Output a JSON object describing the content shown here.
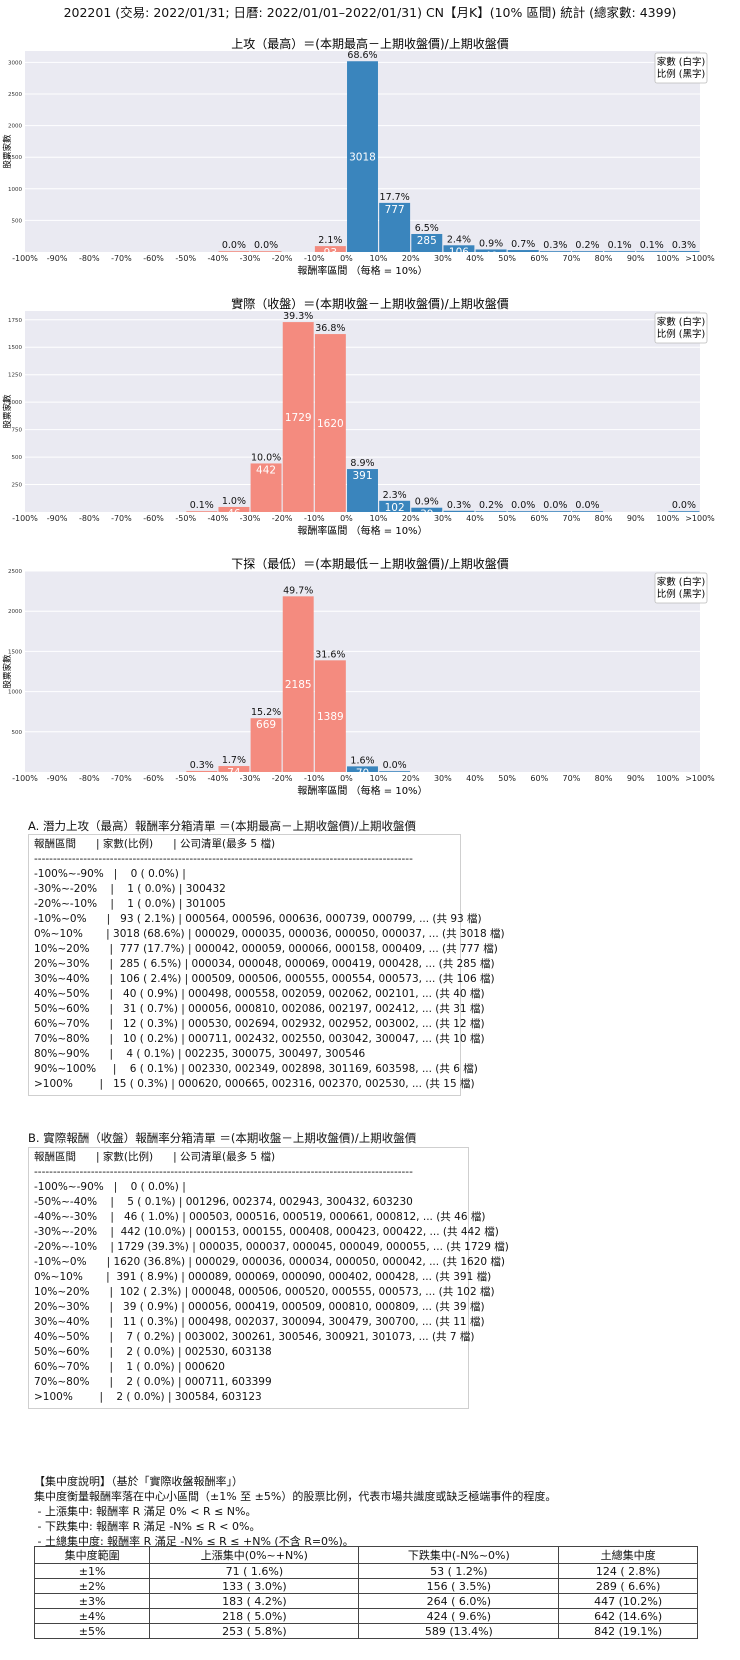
{
  "page_title": "202201 (交易: 2022/01/31; 日曆: 2022/01/01–2022/01/31) CN【月K】(10% 區間) 統計 (總家數: 4399)",
  "colors": {
    "up": "#3a85bd",
    "down": "#f48b7f",
    "plot_bg": "#eaeaf2",
    "grid": "#ffffff"
  },
  "chart_data": [
    {
      "type": "bar",
      "title": "上攻（最高）＝(本期最高－上期收盤價)/上期收盤價",
      "xlabel": "報酬率區間 （每格 = 10%）",
      "ylabel": "股票家數",
      "legend": [
        "家數 (白字)",
        "比例 (黑字)"
      ],
      "legend_position": "top-right",
      "x_ticks": [
        "-100%",
        "-90%",
        "-80%",
        "-70%",
        "-60%",
        "-50%",
        "-40%",
        "-30%",
        "-20%",
        "-10%",
        "0%",
        "10%",
        "20%",
        "30%",
        "40%",
        "50%",
        "60%",
        "70%",
        "80%",
        "90%",
        "100%",
        ">100%"
      ],
      "y_ticks": [
        500,
        1000,
        1500,
        2000,
        2500,
        3000
      ],
      "ylim": [
        0,
        3180
      ],
      "bars": [
        {
          "bin": 6,
          "value": 1,
          "pct": "0.0%",
          "label": ""
        },
        {
          "bin": 7,
          "value": 1,
          "pct": "0.0%",
          "label": ""
        },
        {
          "bin": 9,
          "value": 93,
          "pct": "2.1%",
          "label": "93"
        },
        {
          "bin": 10,
          "value": 3018,
          "pct": "68.6%",
          "label": "3018"
        },
        {
          "bin": 11,
          "value": 777,
          "pct": "17.7%",
          "label": "777"
        },
        {
          "bin": 12,
          "value": 285,
          "pct": "6.5%",
          "label": "285"
        },
        {
          "bin": 13,
          "value": 106,
          "pct": "2.4%",
          "label": "106"
        },
        {
          "bin": 14,
          "value": 40,
          "pct": "0.9%",
          "label": "40"
        },
        {
          "bin": 15,
          "value": 31,
          "pct": "0.7%",
          "label": ""
        },
        {
          "bin": 16,
          "value": 12,
          "pct": "0.3%",
          "label": ""
        },
        {
          "bin": 17,
          "value": 10,
          "pct": "0.2%",
          "label": ""
        },
        {
          "bin": 18,
          "value": 4,
          "pct": "0.1%",
          "label": ""
        },
        {
          "bin": 19,
          "value": 6,
          "pct": "0.1%",
          "label": ""
        },
        {
          "bin": 20,
          "value": 15,
          "pct": "0.3%",
          "label": ""
        }
      ]
    },
    {
      "type": "bar",
      "title": "實際（收盤）＝(本期收盤－上期收盤價)/上期收盤價",
      "xlabel": "報酬率區間 （每格 = 10%）",
      "ylabel": "股票家數",
      "legend": [
        "家數 (白字)",
        "比例 (黑字)"
      ],
      "legend_position": "top-right",
      "x_ticks": [
        "-100%",
        "-90%",
        "-80%",
        "-70%",
        "-60%",
        "-50%",
        "-40%",
        "-30%",
        "-20%",
        "-10%",
        "0%",
        "10%",
        "20%",
        "30%",
        "40%",
        "50%",
        "60%",
        "70%",
        "80%",
        "90%",
        "100%",
        ">100%"
      ],
      "y_ticks": [
        250,
        500,
        750,
        1000,
        1250,
        1500,
        1750
      ],
      "ylim": [
        0,
        1830
      ],
      "bars": [
        {
          "bin": 5,
          "value": 5,
          "pct": "0.1%",
          "label": ""
        },
        {
          "bin": 6,
          "value": 46,
          "pct": "1.0%",
          "label": "46"
        },
        {
          "bin": 7,
          "value": 442,
          "pct": "10.0%",
          "label": "442"
        },
        {
          "bin": 8,
          "value": 1729,
          "pct": "39.3%",
          "label": "1729"
        },
        {
          "bin": 9,
          "value": 1620,
          "pct": "36.8%",
          "label": "1620"
        },
        {
          "bin": 10,
          "value": 391,
          "pct": "8.9%",
          "label": "391"
        },
        {
          "bin": 11,
          "value": 102,
          "pct": "2.3%",
          "label": "102"
        },
        {
          "bin": 12,
          "value": 39,
          "pct": "0.9%",
          "label": "39"
        },
        {
          "bin": 13,
          "value": 11,
          "pct": "0.3%",
          "label": ""
        },
        {
          "bin": 14,
          "value": 7,
          "pct": "0.2%",
          "label": ""
        },
        {
          "bin": 15,
          "value": 2,
          "pct": "0.0%",
          "label": ""
        },
        {
          "bin": 16,
          "value": 1,
          "pct": "0.0%",
          "label": ""
        },
        {
          "bin": 17,
          "value": 2,
          "pct": "0.0%",
          "label": ""
        },
        {
          "bin": 20,
          "value": 2,
          "pct": "0.0%",
          "label": ""
        }
      ]
    },
    {
      "type": "bar",
      "title": "下探（最低）＝(本期最低－上期收盤價)/上期收盤價",
      "xlabel": "報酬率區間 （每格 = 10%）",
      "ylabel": "股票家數",
      "legend": [
        "家數 (白字)",
        "比例 (黑字)"
      ],
      "legend_position": "top-right",
      "x_ticks": [
        "-100%",
        "-90%",
        "-80%",
        "-70%",
        "-60%",
        "-50%",
        "-40%",
        "-30%",
        "-20%",
        "-10%",
        "0%",
        "10%",
        "20%",
        "30%",
        "40%",
        "50%",
        "60%",
        "70%",
        "80%",
        "90%",
        "100%",
        ">100%"
      ],
      "y_ticks": [
        500,
        1000,
        1500,
        2000,
        2500
      ],
      "ylim": [
        0,
        2500
      ],
      "bars": [
        {
          "bin": 5,
          "value": 13,
          "pct": "0.3%",
          "label": ""
        },
        {
          "bin": 6,
          "value": 74,
          "pct": "1.7%",
          "label": "74"
        },
        {
          "bin": 7,
          "value": 669,
          "pct": "15.2%",
          "label": "669"
        },
        {
          "bin": 8,
          "value": 2185,
          "pct": "49.7%",
          "label": "2185"
        },
        {
          "bin": 9,
          "value": 1389,
          "pct": "31.6%",
          "label": "1389"
        },
        {
          "bin": 10,
          "value": 70,
          "pct": "1.6%",
          "label": "70"
        },
        {
          "bin": 11,
          "value": 1,
          "pct": "0.0%",
          "label": ""
        }
      ]
    }
  ],
  "section_a": {
    "title": "A. 潛力上攻（最高）報酬率分箱清單 ＝(本期最高－上期收盤價)/上期收盤價",
    "lines": [
      "報酬區間      | 家數(比例)      | 公司清單(最多 5 檔)",
      "----------------------------------------------------------------------------------------------------",
      "-100%~-90%   |    0 ( 0.0%) |",
      "-30%~-20%    |    1 ( 0.0%) | 300432",
      "-20%~-10%    |    1 ( 0.0%) | 301005",
      "-10%~0%      |   93 ( 2.1%) | 000564, 000596, 000636, 000739, 000799, ... (共 93 檔)",
      "0%~10%       | 3018 (68.6%) | 000029, 000035, 000036, 000050, 000037, ... (共 3018 檔)",
      "10%~20%      |  777 (17.7%) | 000042, 000059, 000066, 000158, 000409, ... (共 777 檔)",
      "20%~30%      |  285 ( 6.5%) | 000034, 000048, 000069, 000419, 000428, ... (共 285 檔)",
      "30%~40%      |  106 ( 2.4%) | 000509, 000506, 000555, 000554, 000573, ... (共 106 檔)",
      "40%~50%      |   40 ( 0.9%) | 000498, 000558, 002059, 002062, 002101, ... (共 40 檔)",
      "50%~60%      |   31 ( 0.7%) | 000056, 000810, 002086, 002197, 002412, ... (共 31 檔)",
      "60%~70%      |   12 ( 0.3%) | 000530, 002694, 002932, 002952, 003002, ... (共 12 檔)",
      "70%~80%      |   10 ( 0.2%) | 000711, 002432, 002550, 003042, 300047, ... (共 10 檔)",
      "80%~90%      |    4 ( 0.1%) | 002235, 300075, 300497, 300546",
      "90%~100%     |    6 ( 0.1%) | 002330, 002349, 002898, 301169, 603598, ... (共 6 檔)",
      ">100%        |   15 ( 0.3%) | 000620, 000665, 002316, 002370, 002530, ... (共 15 檔)"
    ]
  },
  "section_b": {
    "title": "B. 實際報酬（收盤）報酬率分箱清單 ＝(本期收盤－上期收盤價)/上期收盤價",
    "lines": [
      "報酬區間      | 家數(比例)      | 公司清單(最多 5 檔)",
      "----------------------------------------------------------------------------------------------------",
      "-100%~-90%   |    0 ( 0.0%) |",
      "-50%~-40%    |    5 ( 0.1%) | 001296, 002374, 002943, 300432, 603230",
      "-40%~-30%    |   46 ( 1.0%) | 000503, 000516, 000519, 000661, 000812, ... (共 46 檔)",
      "-30%~-20%    |  442 (10.0%) | 000153, 000155, 000408, 000423, 000422, ... (共 442 檔)",
      "-20%~-10%    | 1729 (39.3%) | 000035, 000037, 000045, 000049, 000055, ... (共 1729 檔)",
      "-10%~0%      | 1620 (36.8%) | 000029, 000036, 000034, 000050, 000042, ... (共 1620 檔)",
      "0%~10%       |  391 ( 8.9%) | 000089, 000069, 000090, 000402, 000428, ... (共 391 檔)",
      "10%~20%      |  102 ( 2.3%) | 000048, 000506, 000520, 000555, 000573, ... (共 102 檔)",
      "20%~30%      |   39 ( 0.9%) | 000056, 000419, 000509, 000810, 000809, ... (共 39 檔)",
      "30%~40%      |   11 ( 0.3%) | 000498, 002037, 300094, 300479, 300700, ... (共 11 檔)",
      "40%~50%      |    7 ( 0.2%) | 003002, 300261, 300546, 300921, 301073, ... (共 7 檔)",
      "50%~60%      |    2 ( 0.0%) | 002530, 603138",
      "60%~70%      |    1 ( 0.0%) | 000620",
      "70%~80%      |    2 ( 0.0%) | 000711, 603399",
      ">100%        |    2 ( 0.0%) | 300584, 603123"
    ]
  },
  "concentration": {
    "lines": [
      "【集中度說明】（基於「實際收盤報酬率」）",
      "集中度衡量報酬率落在中心小區間（±1% 至 ±5%）的股票比例，代表市場共識度或缺乏極端事件的程度。",
      " - 上漲集中: 報酬率 R 滿足 0% < R ≤ N%。",
      " - 下跌集中: 報酬率 R 滿足 -N% ≤ R < 0%。",
      " - 土總集中度: 報酬率 R 滿足 -N% ≤ R ≤ +N% (不含 R=0%)。"
    ],
    "headers": [
      "集中度範圍",
      "上漲集中(0%~+N%)",
      "下跌集中(-N%~0%)",
      "土總集中度"
    ],
    "rows": [
      [
        "±1%",
        "71 ( 1.6%)",
        "53 ( 1.2%)",
        "124 ( 2.8%)"
      ],
      [
        "±2%",
        "133 ( 3.0%)",
        "156 ( 3.5%)",
        "289 ( 6.6%)"
      ],
      [
        "±3%",
        "183 ( 4.2%)",
        "264 ( 6.0%)",
        "447 (10.2%)"
      ],
      [
        "±4%",
        "218 ( 5.0%)",
        "424 ( 9.6%)",
        "642 (14.6%)"
      ],
      [
        "±5%",
        "253 ( 5.8%)",
        "589 (13.4%)",
        "842 (19.1%)"
      ]
    ]
  }
}
